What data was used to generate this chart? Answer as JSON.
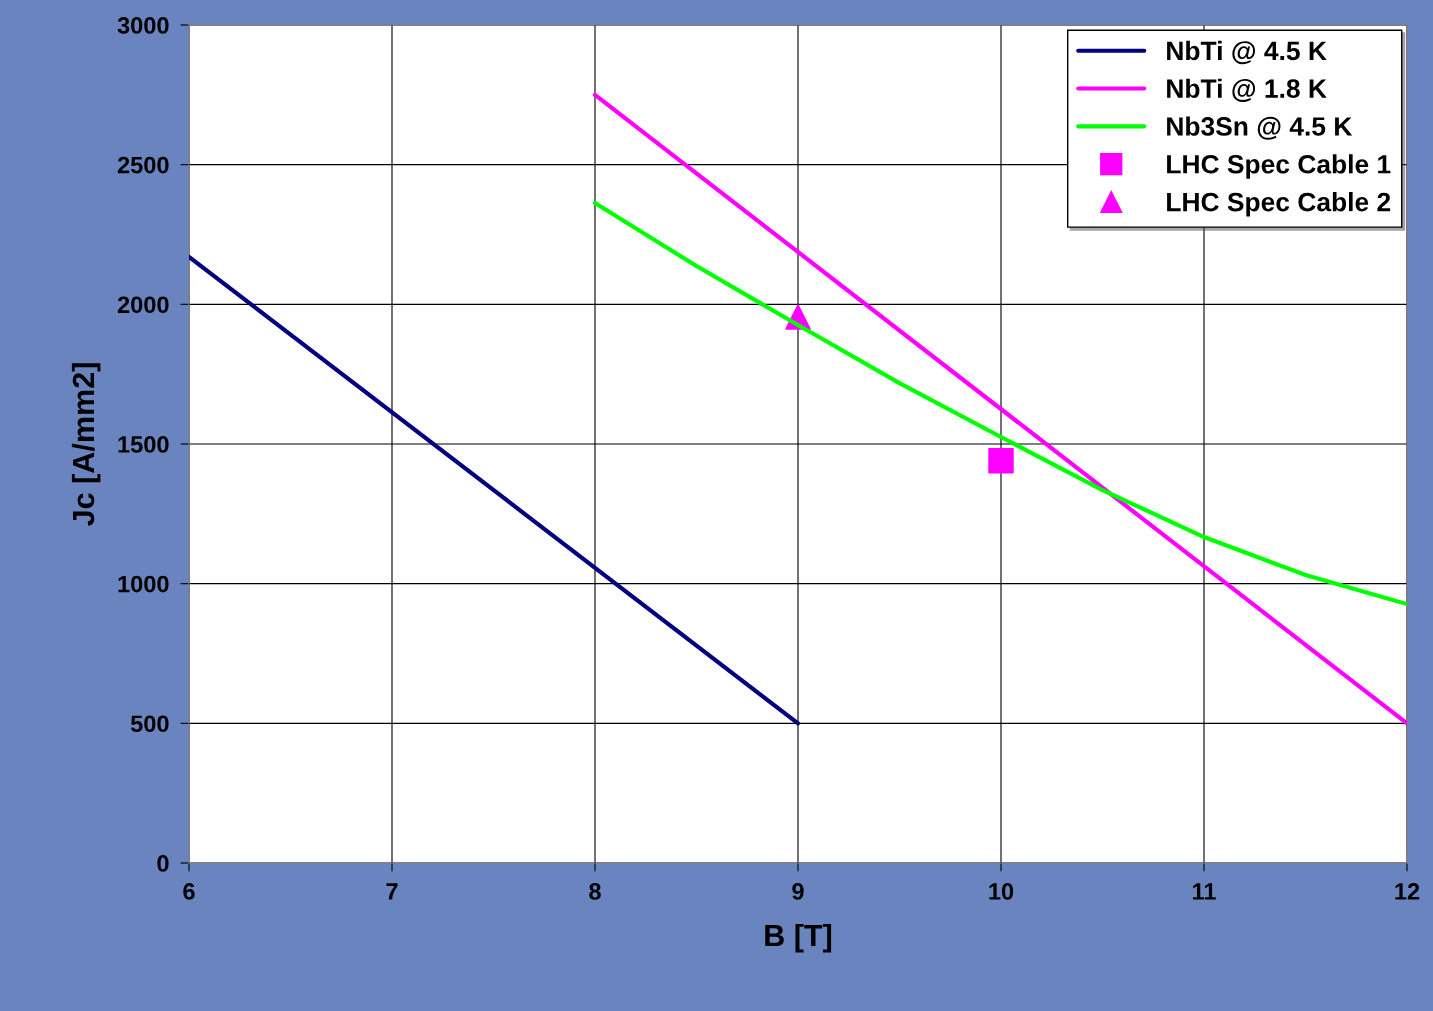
{
  "chart_data": {
    "type": "line",
    "xlabel": "B [T]",
    "ylabel": "Jc [A/mm2]",
    "xlim": [
      6,
      12
    ],
    "xticks": [
      6,
      7,
      8,
      9,
      10,
      11,
      12
    ],
    "ylim": [
      0,
      3000
    ],
    "yticks": [
      0,
      500,
      1000,
      1500,
      2000,
      2500,
      3000
    ],
    "grid": true,
    "legend": "top right",
    "series": [
      {
        "name": "NbTi @ 4.5 K",
        "color": "#000080",
        "x": [
          6,
          9
        ],
        "values": [
          2170,
          500
        ]
      },
      {
        "name": "NbTi @ 1.8 K",
        "color": "#ff00ff",
        "x": [
          8,
          12
        ],
        "values": [
          2750,
          500
        ]
      },
      {
        "name": "Nb3Sn @ 4.5 K",
        "color": "#00ff00",
        "x": [
          8,
          8.5,
          9,
          9.5,
          10,
          10.5,
          11,
          11.5,
          12
        ],
        "values": [
          2363,
          2137,
          1926,
          1718,
          1525,
          1335,
          1167,
          1031,
          927
        ]
      },
      {
        "name": "LHC Spec Cable 1",
        "type": "scatter",
        "marker": "square",
        "color": "#ff00ff",
        "x": [
          10
        ],
        "values": [
          1440
        ]
      },
      {
        "name": "LHC Spec Cable 2",
        "type": "scatter",
        "marker": "triangle",
        "color": "#ff00ff",
        "x": [
          9
        ],
        "values": [
          1955
        ]
      }
    ]
  }
}
